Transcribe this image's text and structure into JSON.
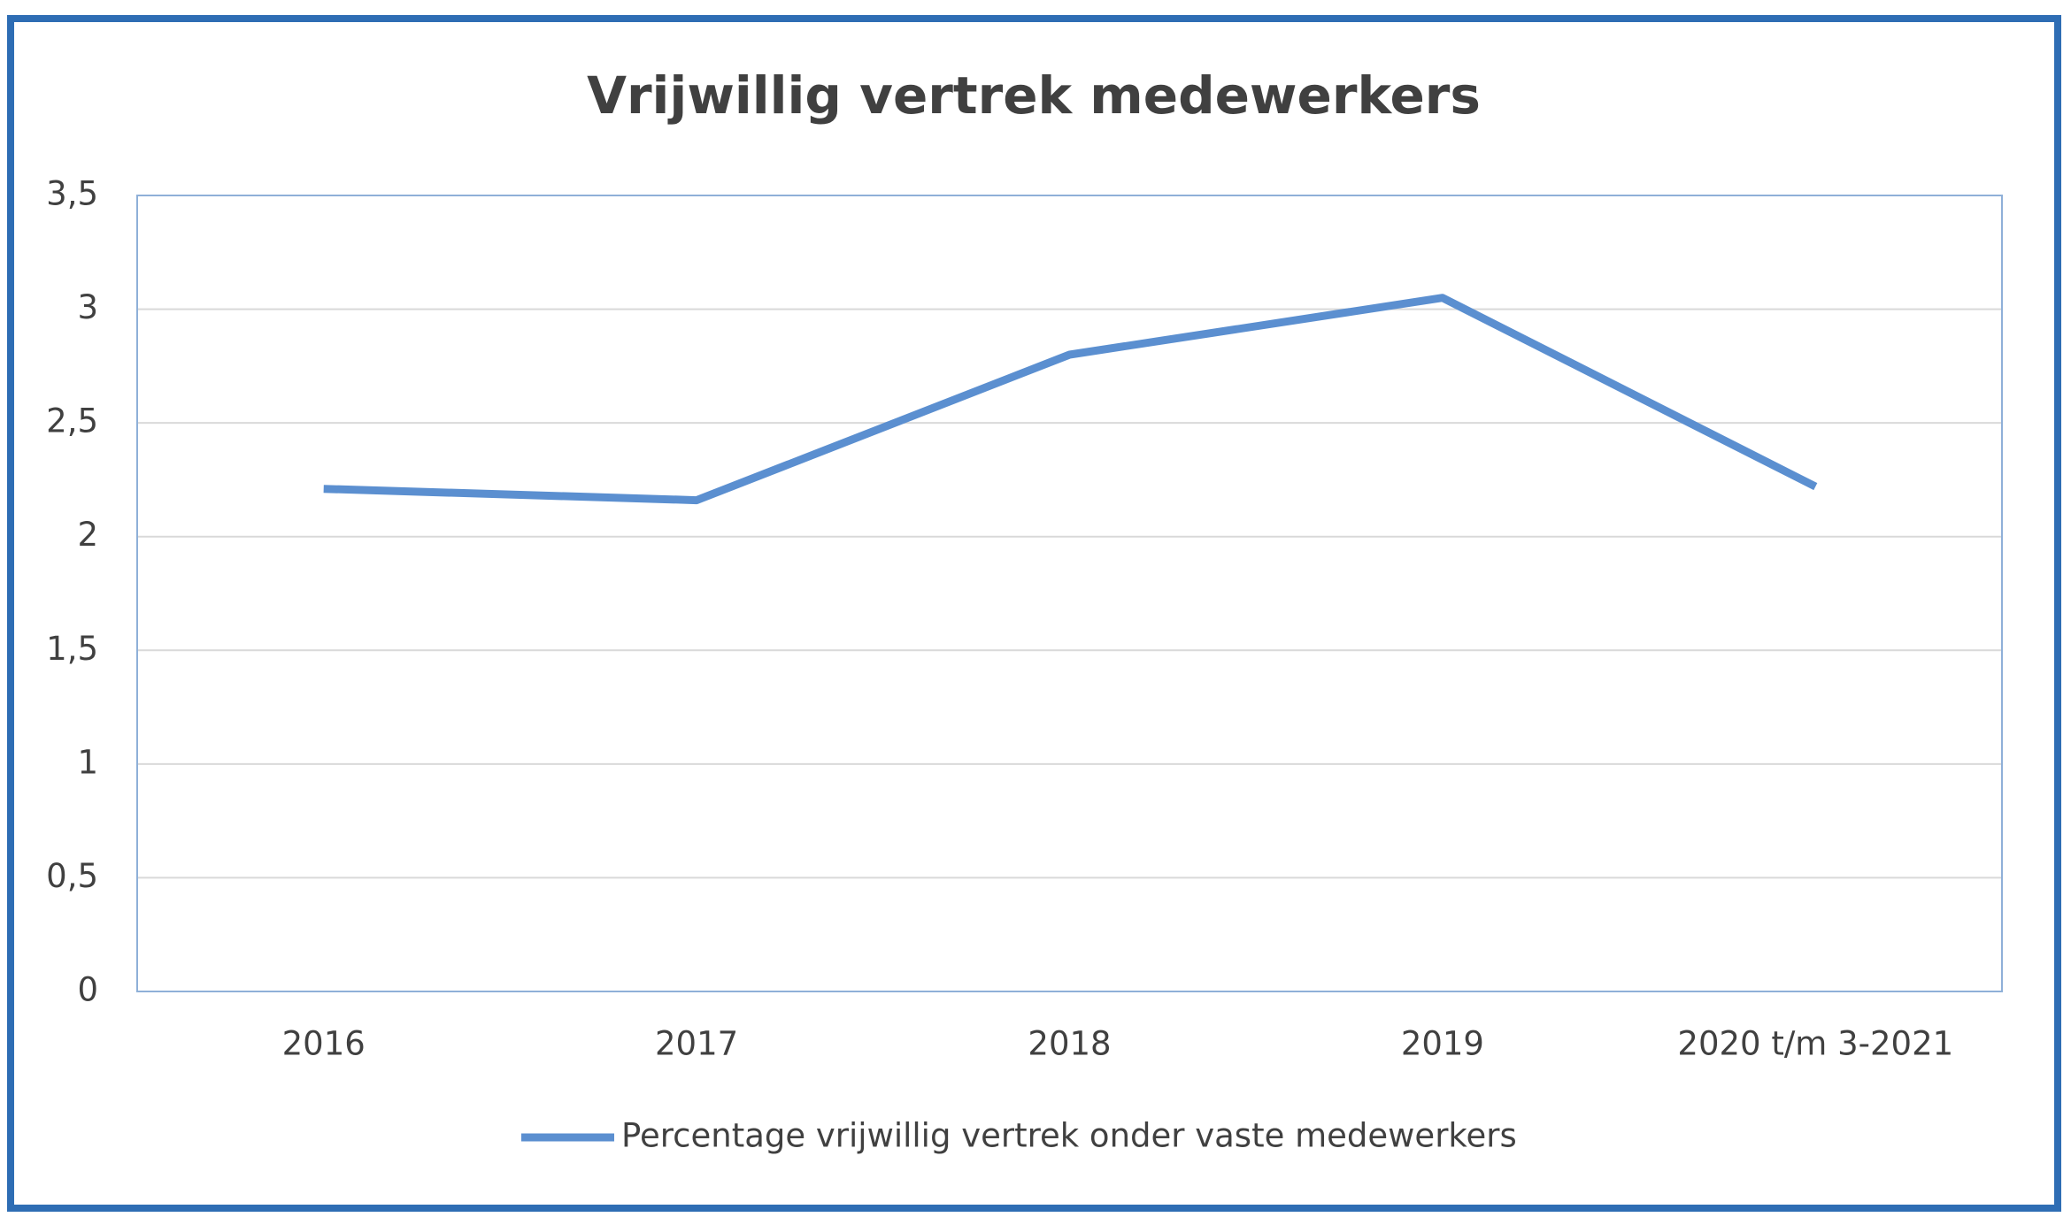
{
  "chart_data": {
    "type": "line",
    "title": "Vrijwillig vertrek medewerkers",
    "categories": [
      "2016",
      "2017",
      "2018",
      "2019",
      "2020 t/m 3-2021"
    ],
    "series": [
      {
        "name": "Percentage vrijwillig vertrek onder vaste medewerkers",
        "color": "#5b8fd0",
        "values": [
          2.21,
          2.16,
          2.8,
          3.05,
          2.22
        ]
      }
    ],
    "ylim": [
      0,
      3.5
    ],
    "yticks": [
      0,
      {
        "value": 0.5,
        "label": "0,5"
      },
      1,
      {
        "value": 1.5,
        "label": "1,5"
      },
      2,
      {
        "value": 2.5,
        "label": "2,5"
      },
      3,
      {
        "value": 3.5,
        "label": "3,5"
      }
    ],
    "grid": true,
    "legend": "bottom"
  }
}
